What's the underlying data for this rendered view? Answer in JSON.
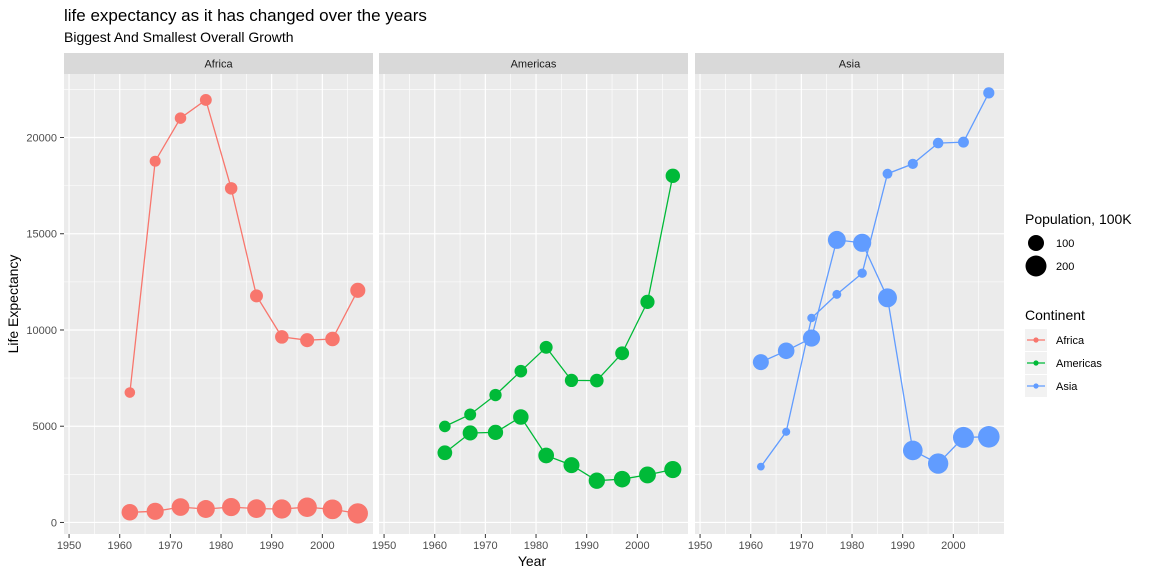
{
  "chart_data": {
    "type": "line",
    "title": "life expectancy as it has changed over the years",
    "subtitle": "Biggest And Smallest Overall Growth",
    "xlabel": "Year",
    "ylabel": "Life Expectancy",
    "xlim": [
      1949,
      2010
    ],
    "ylim": [
      -600,
      23300
    ],
    "x_ticks": [
      1950,
      1960,
      1970,
      1980,
      1990,
      2000
    ],
    "y_ticks": [
      0,
      5000,
      10000,
      15000,
      20000
    ],
    "grid": true,
    "legend_position": "right",
    "size_legend": {
      "title": "Population, 100K",
      "entries": [
        {
          "label": "100",
          "size": 100
        },
        {
          "label": "200",
          "size": 200
        }
      ]
    },
    "color_legend": {
      "title": "Continent",
      "entries": [
        {
          "label": "Africa",
          "color": "#F8766D"
        },
        {
          "label": "Americas",
          "color": "#00BA38"
        },
        {
          "label": "Asia",
          "color": "#619CFF"
        }
      ]
    },
    "panels": [
      {
        "facet": "Africa",
        "color": "#F8766D",
        "series": [
          {
            "x": [
              1962,
              1967,
              1972,
              1977,
              1982,
              1987,
              1992,
              1997,
              2002,
              2007
            ],
            "y": [
              6750,
              18770,
              21010,
              21950,
              17360,
              11770,
              9640,
              9470,
              9530,
              12060
            ],
            "size": [
              30,
              34,
              39,
              43,
              50,
              56,
              63,
              70,
              77,
              85
            ]
          },
          {
            "x": [
              1962,
              1967,
              1972,
              1977,
              1982,
              1987,
              1992,
              1997,
              2002,
              2007
            ],
            "y": [
              530,
              580,
              800,
              700,
              800,
              720,
              700,
              790,
              680,
              470
            ],
            "size": [
              110,
              120,
              130,
              135,
              140,
              150,
              160,
              165,
              170,
              185
            ]
          }
        ]
      },
      {
        "facet": "Americas",
        "color": "#00BA38",
        "series": [
          {
            "x": [
              1962,
              1967,
              1972,
              1977,
              1982,
              1987,
              1992,
              1997,
              2002,
              2007
            ],
            "y": [
              4990,
              5610,
              6620,
              7860,
              9100,
              7380,
              7370,
              8790,
              11460,
              18010
            ],
            "size": [
              40,
              44,
              48,
              52,
              56,
              60,
              64,
              68,
              72,
              75
            ]
          },
          {
            "x": [
              1962,
              1967,
              1972,
              1977,
              1982,
              1987,
              1992,
              1997,
              2002,
              2007
            ],
            "y": [
              3620,
              4650,
              4680,
              5480,
              3480,
              2980,
              2170,
              2250,
              2470,
              2750
            ],
            "size": [
              80,
              85,
              88,
              92,
              95,
              100,
              105,
              110,
              115,
              120
            ]
          }
        ]
      },
      {
        "facet": "Asia",
        "color": "#619CFF",
        "series": [
          {
            "x": [
              1962,
              1967,
              1972,
              1977,
              1982,
              1987,
              1992,
              1997,
              2002,
              2007
            ],
            "y": [
              2900,
              4710,
              10620,
              11850,
              12950,
              18120,
              18630,
              19710,
              19760,
              22320
            ],
            "size": [
              10,
              12,
              14,
              17,
              20,
              24,
              27,
              30,
              33,
              36
            ]
          },
          {
            "x": [
              1962,
              1967,
              1972,
              1977,
              1982,
              1987,
              1992,
              1997,
              2002,
              2007
            ],
            "y": [
              8330,
              8920,
              9580,
              14680,
              14530,
              11670,
              3740,
              3060,
              4420,
              4450
            ],
            "size": [
              100,
              110,
              120,
              135,
              140,
              155,
              170,
              185,
              200,
              215
            ]
          }
        ]
      }
    ]
  }
}
